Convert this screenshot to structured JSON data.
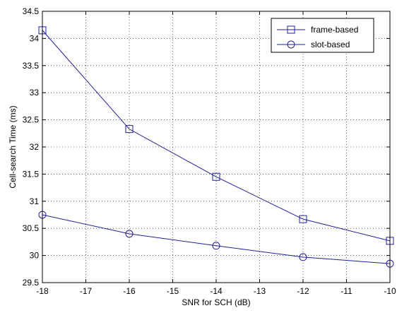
{
  "chart_data": {
    "type": "line",
    "title": "",
    "xlabel": "SNR for SCH (dB)",
    "ylabel": "Cell-search Time (ms)",
    "xlim": [
      -18,
      -10
    ],
    "ylim": [
      29.5,
      34.5
    ],
    "x_ticks": [
      -18,
      -17,
      -16,
      -15,
      -14,
      -13,
      -12,
      -11,
      -10
    ],
    "y_ticks": [
      29.5,
      30,
      30.5,
      31,
      31.5,
      32,
      32.5,
      33,
      33.5,
      34,
      34.5
    ],
    "x_tick_labels": [
      "-18",
      "-17",
      "-16",
      "-15",
      "-14",
      "-13",
      "-12",
      "-11",
      "-10"
    ],
    "y_tick_labels": [
      "29.5",
      "30",
      "30.5",
      "31",
      "31.5",
      "32",
      "32.5",
      "33",
      "33.5",
      "34",
      "34.5"
    ],
    "grid": true,
    "legend_position": "top-right",
    "series": [
      {
        "name": "frame-based",
        "marker": "square",
        "color": "#1f1fa0",
        "x": [
          -18,
          -16,
          -14,
          -12,
          -10
        ],
        "y": [
          34.15,
          32.33,
          31.45,
          30.67,
          30.27
        ]
      },
      {
        "name": "slot-based",
        "marker": "circle",
        "color": "#1f1fa0",
        "x": [
          -18,
          -16,
          -14,
          -12,
          -10
        ],
        "y": [
          30.75,
          30.4,
          30.18,
          29.97,
          29.85
        ]
      }
    ]
  }
}
